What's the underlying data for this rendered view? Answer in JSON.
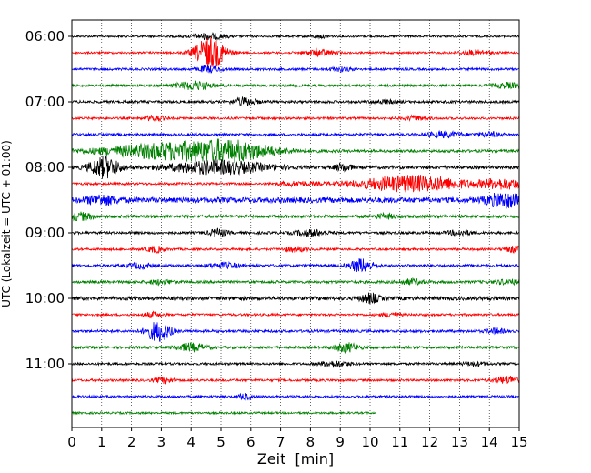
{
  "chart_data": {
    "type": "line",
    "title": "",
    "xlabel": "Zeit  [min]",
    "ylabel": "UTC (Lokalzeit = UTC + 01:00)",
    "xlim": [
      0,
      15
    ],
    "x_ticks": [
      "0",
      "1",
      "2",
      "3",
      "4",
      "5",
      "6",
      "7",
      "8",
      "9",
      "10",
      "11",
      "12",
      "13",
      "14",
      "15"
    ],
    "y_ticks": [
      "06:00",
      "07:00",
      "08:00",
      "09:00",
      "10:00",
      "11:00"
    ],
    "grid": "vertical dotted",
    "trace_colors": [
      "#000000",
      "#ff0000",
      "#0000ff",
      "#008000"
    ],
    "start_time": "06:00",
    "trace_minutes": 15,
    "traces": [
      {
        "start": "06:00",
        "end_min": 15,
        "color": "#000000",
        "noise": 0.35,
        "events": [
          [
            4.6,
            1.0,
            0.6
          ],
          [
            8.3,
            0.5,
            0.3
          ]
        ]
      },
      {
        "start": "06:15",
        "end_min": 15,
        "color": "#ff0000",
        "noise": 0.35,
        "events": [
          [
            4.65,
            5.5,
            0.5
          ],
          [
            8.3,
            1.0,
            0.5
          ],
          [
            13.5,
            0.8,
            0.5
          ]
        ]
      },
      {
        "start": "06:30",
        "end_min": 15,
        "color": "#0000ff",
        "noise": 0.4,
        "events": [
          [
            4.6,
            1.0,
            0.4
          ],
          [
            9.0,
            0.6,
            0.4
          ]
        ]
      },
      {
        "start": "06:45",
        "end_min": 15,
        "color": "#008000",
        "noise": 0.4,
        "events": [
          [
            4.1,
            1.4,
            0.6
          ],
          [
            14.6,
            0.8,
            0.5
          ]
        ]
      },
      {
        "start": "07:00",
        "end_min": 15,
        "color": "#000000",
        "noise": 0.45,
        "events": [
          [
            5.8,
            1.3,
            0.4
          ],
          [
            10.5,
            0.5,
            0.4
          ]
        ]
      },
      {
        "start": "07:15",
        "end_min": 15,
        "color": "#ff0000",
        "noise": 0.4,
        "events": [
          [
            2.8,
            1.0,
            0.3
          ],
          [
            11.5,
            0.7,
            0.4
          ]
        ]
      },
      {
        "start": "07:30",
        "end_min": 15,
        "color": "#0000ff",
        "noise": 0.45,
        "events": [
          [
            12.5,
            0.9,
            0.6
          ],
          [
            14.0,
            0.7,
            0.4
          ]
        ]
      },
      {
        "start": "07:45",
        "end_min": 15,
        "color": "#008000",
        "noise": 0.45,
        "events": [
          [
            3.7,
            3.0,
            2.5
          ],
          [
            5.5,
            1.8,
            1.2
          ]
        ]
      },
      {
        "start": "08:00",
        "end_min": 15,
        "color": "#000000",
        "noise": 0.55,
        "events": [
          [
            1.1,
            3.5,
            0.5
          ],
          [
            4.9,
            2.2,
            1.6
          ],
          [
            9.1,
            1.2,
            0.3
          ]
        ]
      },
      {
        "start": "08:15",
        "end_min": 15,
        "color": "#ff0000",
        "noise": 0.4,
        "events": [
          [
            11.4,
            2.8,
            1.8
          ],
          [
            14.5,
            1.6,
            0.8
          ],
          [
            7.5,
            0.7,
            0.6
          ]
        ]
      },
      {
        "start": "08:30",
        "end_min": 15,
        "color": "#0000ff",
        "noise": 0.9,
        "events": [
          [
            1.0,
            1.5,
            0.5
          ],
          [
            14.5,
            2.2,
            0.6
          ]
        ]
      },
      {
        "start": "08:45",
        "end_min": 15,
        "color": "#008000",
        "noise": 0.5,
        "events": [
          [
            0.3,
            1.2,
            0.4
          ],
          [
            10.5,
            0.7,
            0.4
          ]
        ]
      },
      {
        "start": "09:00",
        "end_min": 15,
        "color": "#000000",
        "noise": 0.45,
        "events": [
          [
            4.9,
            1.2,
            0.3
          ],
          [
            8.0,
            1.0,
            0.5
          ],
          [
            13.0,
            0.8,
            0.4
          ]
        ]
      },
      {
        "start": "09:15",
        "end_min": 15,
        "color": "#ff0000",
        "noise": 0.4,
        "events": [
          [
            2.8,
            1.0,
            0.3
          ],
          [
            7.5,
            0.8,
            0.4
          ],
          [
            14.8,
            1.0,
            0.3
          ]
        ]
      },
      {
        "start": "09:30",
        "end_min": 15,
        "color": "#0000ff",
        "noise": 0.45,
        "events": [
          [
            9.7,
            2.2,
            0.4
          ],
          [
            5.1,
            0.8,
            0.6
          ],
          [
            2.3,
            0.8,
            0.4
          ]
        ]
      },
      {
        "start": "09:45",
        "end_min": 15,
        "color": "#008000",
        "noise": 0.45,
        "events": [
          [
            3.0,
            0.7,
            0.4
          ],
          [
            11.4,
            0.8,
            0.4
          ],
          [
            14.6,
            0.8,
            0.4
          ]
        ]
      },
      {
        "start": "10:00",
        "end_min": 15,
        "color": "#000000",
        "noise": 0.65,
        "events": [
          [
            10.0,
            1.5,
            0.3
          ]
        ]
      },
      {
        "start": "10:15",
        "end_min": 15,
        "color": "#ff0000",
        "noise": 0.4,
        "events": [
          [
            2.7,
            0.8,
            0.3
          ],
          [
            10.7,
            0.7,
            0.3
          ]
        ]
      },
      {
        "start": "10:30",
        "end_min": 15,
        "color": "#0000ff",
        "noise": 0.45,
        "events": [
          [
            2.9,
            3.5,
            0.4
          ],
          [
            14.2,
            0.8,
            0.3
          ]
        ]
      },
      {
        "start": "10:45",
        "end_min": 15,
        "color": "#008000",
        "noise": 0.45,
        "events": [
          [
            4.0,
            1.3,
            0.5
          ],
          [
            9.2,
            1.5,
            0.4
          ]
        ]
      },
      {
        "start": "11:00",
        "end_min": 15,
        "color": "#000000",
        "noise": 0.4,
        "events": [
          [
            8.8,
            1.0,
            0.5
          ],
          [
            13.5,
            0.6,
            0.4
          ]
        ]
      },
      {
        "start": "11:15",
        "end_min": 15,
        "color": "#ff0000",
        "noise": 0.4,
        "events": [
          [
            3.1,
            1.0,
            0.3
          ],
          [
            14.6,
            1.4,
            0.4
          ]
        ]
      },
      {
        "start": "11:30",
        "end_min": 15,
        "color": "#0000ff",
        "noise": 0.4,
        "events": [
          [
            5.8,
            1.0,
            0.2
          ]
        ]
      },
      {
        "start": "11:45",
        "end_min": 10.2,
        "color": "#008000",
        "noise": 0.35,
        "events": []
      }
    ]
  }
}
